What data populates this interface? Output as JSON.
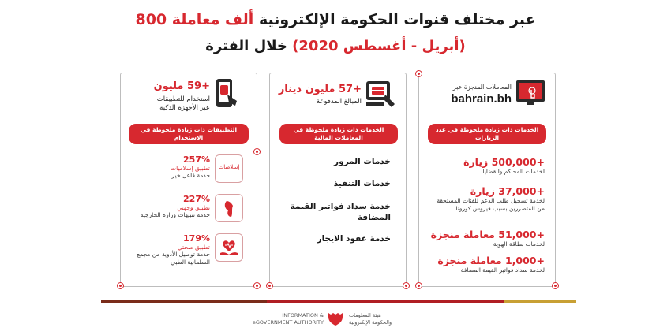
{
  "header": {
    "title_number": "800",
    "title_red": "ألف معاملة",
    "title_rest": "عبر مختلف قنوات الحكومة الإلكترونية",
    "subtitle_rest": "خلال الفترة",
    "subtitle_red": "(أبريل - أغسطس 2020)"
  },
  "panel_right": {
    "brand_label": "المعاملات المنجزة عبر",
    "brand_name": "bahrain.bh",
    "pill": "الخدمات ذات زيادة ملحوظة في عدد الزيارات",
    "items": [
      {
        "value": "+500,000 زيارة",
        "desc": "لخدمات المحاكم والقضايا"
      },
      {
        "value": "+37,000 زيارة",
        "desc": "لخدمة تسجيل طلب الدعم للفئات المستحقة من المتضررين بسبب فيروس كورونا"
      },
      {
        "value": "+51,000 معاملة منجزة",
        "desc": "لخدمات بطاقة الهوية"
      },
      {
        "value": "+1,000 معاملة منجزة",
        "desc": "لخدمة سداد فواتير القيمة المضافة"
      }
    ]
  },
  "panel_middle": {
    "value": "+57 مليون دينار",
    "label": "المبالغ المدفوعة",
    "pill": "الخدمات ذات زيادة ملحوظة في المعاملات المالية",
    "items": [
      "خدمات المرور",
      "خدمات التنفيذ",
      "خدمة سداد فواتير القيمة المضافة",
      "خدمة عقود الايجار"
    ]
  },
  "panel_left": {
    "value": "+59 مليون",
    "label_line1": "استخدام للتطبيقات",
    "label_line2": "عبر الأجهزة الذكية",
    "pill": "التطبيقات ذات زيادة ملحوظة في الاستخدام",
    "icon_text": "إسلاميات",
    "apps": [
      {
        "percent": "257%",
        "name": "تطبيق إسلاميات",
        "desc": "خدمة فاعل خير"
      },
      {
        "percent": "227%",
        "name": "تطبيق وجهتي",
        "desc": "خدمة تنبيهات وزارة الخارجية"
      },
      {
        "percent": "179%",
        "name": "تطبيق صحتي",
        "desc": "خدمة توصيل الأدوية من مجمع السلمانية الطبي"
      }
    ]
  },
  "footer": {
    "en_line1": "INFORMATION &",
    "en_line2": "eGOVERNMENT AUTHORITY",
    "ar_line1": "هيئة المعلومات",
    "ar_line2": "والحكومة الإلكترونية"
  },
  "colors": {
    "accent": "#d7282f",
    "bar_brown": "#7a2c1a",
    "bar_gold": "#c8a034",
    "bar_red": "#b01e23"
  }
}
